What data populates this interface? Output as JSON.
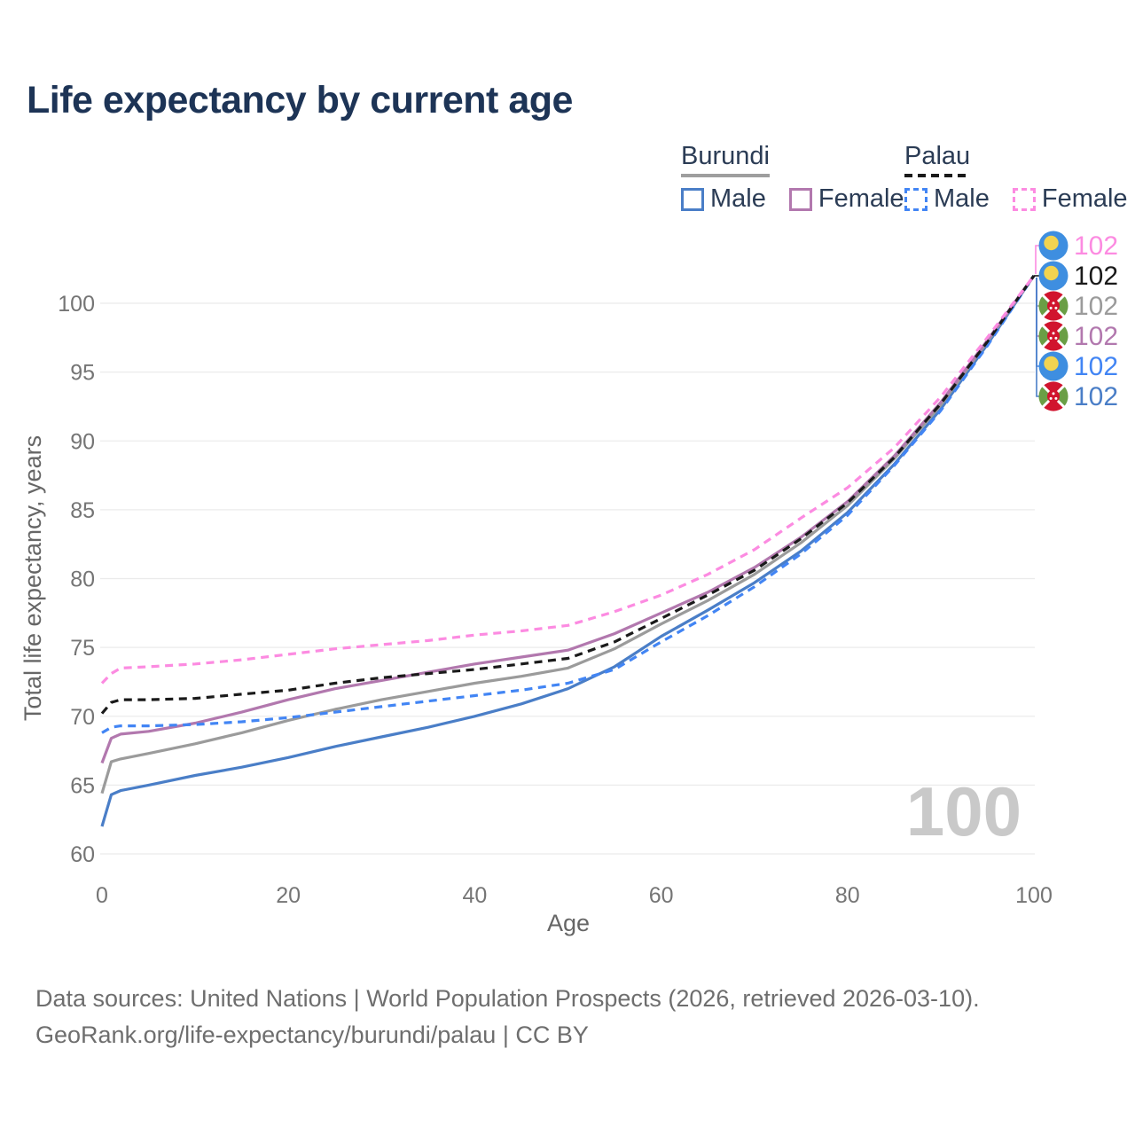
{
  "header": {
    "title": "Life expectancy by current age"
  },
  "legend": {
    "groups": [
      {
        "country": "Burundi",
        "line_style": "solid",
        "underline_color": "#9e9e9e",
        "items": [
          {
            "label": "Male",
            "color": "#4a7ec7",
            "dash": false
          },
          {
            "label": "Female",
            "color": "#b278ae",
            "dash": false
          }
        ]
      },
      {
        "country": "Palau",
        "line_style": "dashed",
        "underline_color": "#1a1a1a",
        "items": [
          {
            "label": "Male",
            "color": "#4285f4",
            "dash": true
          },
          {
            "label": "Female",
            "color": "#fc8be1",
            "dash": true
          }
        ]
      }
    ]
  },
  "chart_data": {
    "type": "line",
    "title": "Life expectancy by current age",
    "xlabel": "Age",
    "ylabel": "Total life expectancy, years",
    "x_ticks": [
      0,
      20,
      40,
      60,
      80,
      100
    ],
    "y_ticks": [
      60,
      65,
      70,
      75,
      80,
      85,
      90,
      95,
      100
    ],
    "xlim": [
      0,
      100
    ],
    "ylim": [
      58,
      104
    ],
    "grid": true,
    "legend_position": "top-right",
    "watermark": "100",
    "x": [
      0,
      1,
      2,
      5,
      10,
      15,
      20,
      25,
      30,
      35,
      40,
      45,
      50,
      55,
      60,
      65,
      70,
      75,
      80,
      85,
      90,
      95,
      100
    ],
    "series": [
      {
        "name": "Burundi Male",
        "country": "Burundi",
        "sex": "Male",
        "color": "#4a7ec7",
        "dashed": false,
        "values": [
          62.0,
          64.3,
          64.6,
          65.0,
          65.7,
          66.3,
          67.0,
          67.8,
          68.5,
          69.2,
          70.0,
          70.9,
          72.0,
          73.6,
          75.8,
          77.7,
          79.7,
          82.0,
          84.8,
          88.3,
          92.3,
          97.0,
          102.0
        ]
      },
      {
        "name": "Burundi",
        "country": "Burundi",
        "sex": "Both",
        "color": "#9b9b9b",
        "dashed": false,
        "values": [
          64.4,
          66.7,
          66.9,
          67.3,
          68.0,
          68.8,
          69.7,
          70.5,
          71.2,
          71.8,
          72.4,
          72.9,
          73.5,
          74.9,
          76.7,
          78.4,
          80.3,
          82.6,
          85.3,
          88.7,
          92.6,
          97.2,
          102.0
        ]
      },
      {
        "name": "Burundi Female",
        "country": "Burundi",
        "sex": "Female",
        "color": "#b278ae",
        "dashed": false,
        "values": [
          66.6,
          68.4,
          68.7,
          68.9,
          69.5,
          70.3,
          71.2,
          72.0,
          72.6,
          73.2,
          73.8,
          74.3,
          74.8,
          76.0,
          77.5,
          79.0,
          80.8,
          83.0,
          85.6,
          88.9,
          92.8,
          97.3,
          102.0
        ]
      },
      {
        "name": "Palau Male",
        "country": "Palau",
        "sex": "Male",
        "color": "#4285f4",
        "dashed": true,
        "values": [
          68.8,
          69.2,
          69.3,
          69.3,
          69.4,
          69.6,
          69.9,
          70.3,
          70.7,
          71.1,
          71.5,
          71.9,
          72.4,
          73.4,
          75.4,
          77.3,
          79.4,
          81.8,
          84.6,
          88.2,
          92.2,
          96.9,
          102.0
        ]
      },
      {
        "name": "Palau",
        "country": "Palau",
        "sex": "Both",
        "color": "#1a1a1a",
        "dashed": true,
        "values": [
          70.2,
          71.0,
          71.2,
          71.2,
          71.3,
          71.6,
          71.9,
          72.4,
          72.8,
          73.1,
          73.4,
          73.8,
          74.2,
          75.4,
          77.1,
          78.8,
          80.6,
          82.9,
          85.5,
          88.8,
          92.7,
          97.2,
          102.0
        ]
      },
      {
        "name": "Palau Female",
        "country": "Palau",
        "sex": "Female",
        "color": "#fc8be1",
        "dashed": true,
        "values": [
          72.4,
          73.1,
          73.5,
          73.6,
          73.8,
          74.1,
          74.5,
          74.9,
          75.2,
          75.5,
          75.9,
          76.2,
          76.6,
          77.6,
          78.8,
          80.3,
          82.1,
          84.4,
          86.6,
          89.5,
          93.2,
          97.5,
          102.0
        ]
      }
    ]
  },
  "end_labels": [
    {
      "flag": "palau",
      "series": "Palau Female",
      "value": "102",
      "color": "#fc8be1"
    },
    {
      "flag": "palau",
      "series": "Palau",
      "value": "102",
      "color": "#1a1a1a"
    },
    {
      "flag": "burundi",
      "series": "Burundi",
      "value": "102",
      "color": "#9b9b9b"
    },
    {
      "flag": "burundi",
      "series": "Burundi Female",
      "value": "102",
      "color": "#b278ae"
    },
    {
      "flag": "palau",
      "series": "Palau Male",
      "value": "102",
      "color": "#4285f4"
    },
    {
      "flag": "burundi",
      "series": "Burundi Male",
      "value": "102",
      "color": "#4a7ec7"
    }
  ],
  "flag_colors": {
    "palau": {
      "bg": "#3e8ee0",
      "disc": "#f2d350"
    },
    "burundi": {
      "red": "#d1142e",
      "green": "#6a9e45",
      "white": "#ffffff"
    }
  },
  "footer": {
    "line1": "Data sources: United Nations | World Population Prospects (2026, retrieved 2026-03-10).",
    "line2": "GeoRank.org/life-expectancy/burundi/palau | CC BY"
  }
}
